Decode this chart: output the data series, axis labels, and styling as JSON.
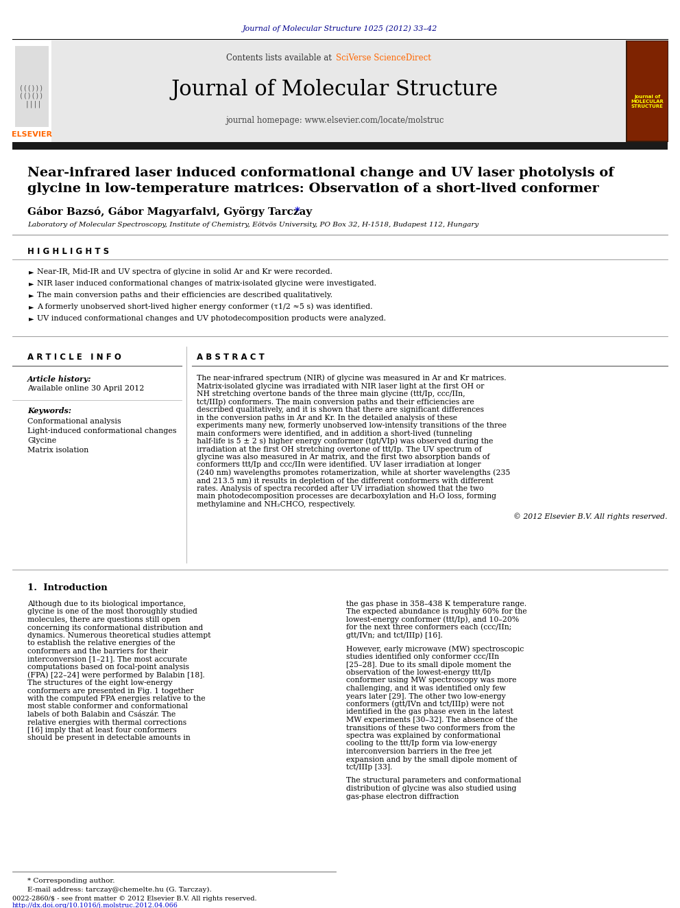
{
  "journal_ref": "Journal of Molecular Structure 1025 (2012) 33–42",
  "journal_ref_color": "#00008B",
  "header_bg": "#E8E8E8",
  "contents_line": "Contents lists available at ",
  "sciverse": "SciVerse ScienceDirect",
  "sciverse_color": "#FF6600",
  "journal_name": "Journal of Molecular Structure",
  "homepage_line": "journal homepage: www.elsevier.com/locate/molstruc",
  "thick_bar_color": "#1a1a1a",
  "title_line1": "Near-infrared laser induced conformational change and UV laser photolysis of",
  "title_line2": "glycine in low-temperature matrices: Observation of a short-lived conformer",
  "authors_main": "Gábor Bazsó, Gábor Magyarfalvi, György Tarczay ",
  "authors_star": "*",
  "affiliation": "Laboratory of Molecular Spectroscopy, Institute of Chemistry, Eötvös University, PO Box 32, H-1518, Budapest 112, Hungary",
  "highlights_header": "H I G H L I G H T S",
  "highlights": [
    "Near-IR, Mid-IR and UV spectra of glycine in solid Ar and Kr were recorded.",
    "NIR laser induced conformational changes of matrix-isolated glycine were investigated.",
    "The main conversion paths and their efficiencies are described qualitatively.",
    "A formerly unobserved short-lived higher energy conformer (τ1/2 ≈5 s) was identified.",
    "UV induced conformational changes and UV photodecomposition products were analyzed."
  ],
  "article_info_header": "A R T I C L E   I N F O",
  "abstract_header": "A B S T R A C T",
  "article_history_label": "Article history:",
  "available_online": "Available online 30 April 2012",
  "keywords_label": "Keywords:",
  "keywords": [
    "Conformational analysis",
    "Light-induced conformational changes",
    "Glycine",
    "Matrix isolation"
  ],
  "abstract_text": "The near-infrared spectrum (NIR) of glycine was measured in Ar and Kr matrices. Matrix-isolated glycine was irradiated with NIR laser light at the first OH or NH stretching overtone bands of the three main glycine (ttt/Ip, ccc/IIn, tct/IIIp) conformers. The main conversion paths and their efficiencies are described qualitatively, and it is shown that there are significant differences in the conversion paths in Ar and Kr. In the detailed analysis of these experiments many new, formerly unobserved low-intensity transitions of the three main conformers were identified, and in addition a short-lived (tunneling half-life is 5 ± 2 s) higher energy conformer (tgt/VIp) was observed during the irradiation at the first OH stretching overtone of ttt/Ip. The UV spectrum of glycine was also measured in Ar matrix, and the first two absorption bands of conformers ttt/Ip and ccc/IIn were identified. UV laser irradiation at longer (240 nm) wavelengths promotes rotamerization, while at shorter wavelengths (235 and 213.5 nm) it results in depletion of the different conformers with different rates. Analysis of spectra recorded after UV irradiation showed that the two main photodecomposition processes are decarboxylation and H₂O loss, forming methylamine and NH₂CHCO, respectively.",
  "copyright": "© 2012 Elsevier B.V. All rights reserved.",
  "intro_header": "1.  Introduction",
  "intro_col1": "Although due to its biological importance, glycine is one of the most thoroughly studied molecules, there are questions still open concerning its conformational distribution and dynamics. Numerous theoretical studies attempt to establish the relative energies of the conformers and the barriers for their interconversion [1–21]. The most accurate computations based on focal-point analysis (FPA) [22–24] were performed by Balabin [18]. The structures of the eight low-energy conformers are presented in Fig. 1 together with the computed FPA energies relative to the most stable conformer and conformational labels of both Balabin and Császár. The relative energies with thermal corrections [16] imply that at least four conformers should be present in detectable amounts in",
  "intro_col2_para1": "the gas phase in 358–438 K temperature range. The expected abundance is roughly 60% for the lowest-energy conformer (ttt/Ip), and 10–20% for the next three conformers each (ccc/IIn; gtt/IVn; and tct/IIIp) [16].",
  "intro_col2_para2": "However, early microwave (MW) spectroscopic studies identified only conformer ccc/IIn [25–28]. Due to its small dipole moment the observation of the lowest-energy ttt/Ip conformer using MW spectroscopy was more challenging, and it was identified only few years later [29]. The other two low-energy conformers (gtt/IVn and tct/IIIp) were not identified in the gas phase even in the latest MW experiments [30–32]. The absence of the transitions of these two conformers from the spectra was explained by conformational cooling to the ttt/Ip form via low-energy interconversion barriers in the free jet expansion and by the small dipole moment of tct/IIIp [33].",
  "intro_col2_para3": "The structural parameters and conformational distribution of glycine was also studied using gas-phase electron diffraction",
  "footnote_star": "* Corresponding author.",
  "footnote_email": "E-mail address: tarczay@chemelte.hu (G. Tarczay).",
  "footnote_issn": "0022-2860/$ - see front matter © 2012 Elsevier B.V. All rights reserved.",
  "footnote_doi": "http://dx.doi.org/10.1016/j.molstruc.2012.04.066"
}
